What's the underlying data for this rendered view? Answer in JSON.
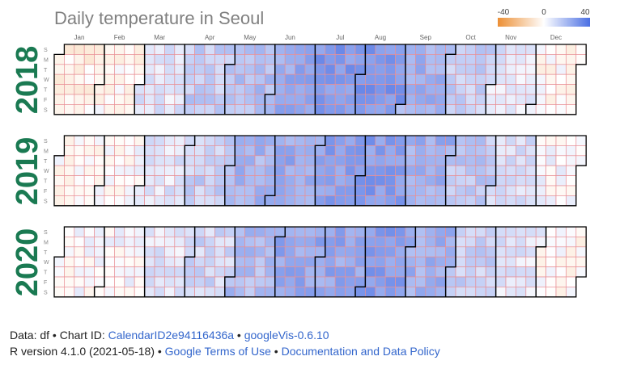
{
  "chart_data": {
    "type": "heatmap",
    "subtype": "calendar",
    "title": "Daily temperature in Seoul",
    "years": [
      "2018",
      "2019",
      "2020"
    ],
    "month_labels": [
      "Jan",
      "Feb",
      "Mar",
      "Apr",
      "May",
      "Jun",
      "Jul",
      "Aug",
      "Sep",
      "Oct",
      "Nov",
      "Dec"
    ],
    "day_labels": [
      "S",
      "M",
      "T",
      "W",
      "T",
      "F",
      "S"
    ],
    "legend": {
      "min_label": "-40",
      "mid_label": "0",
      "max_label": "40",
      "min": -40,
      "max": 40,
      "placement": "top-right"
    },
    "colors": {
      "min": "#ec8f35",
      "zero": "#ffffff",
      "max": "#4a6fe3",
      "cell_border": "#e98f95",
      "month_border": "#000000",
      "title": "#808080",
      "year": "#1a7a52"
    },
    "monthly_mean_temperature": {
      "2018": [
        -4,
        -2,
        7,
        14,
        18,
        23,
        28,
        29,
        21,
        13,
        7,
        -1
      ],
      "2019": [
        -1,
        1,
        7,
        13,
        20,
        23,
        26,
        27,
        22,
        15,
        9,
        2
      ],
      "2020": [
        1,
        2,
        7,
        11,
        18,
        24,
        24,
        27,
        21,
        13,
        7,
        -1
      ]
    }
  },
  "footer": {
    "line1": {
      "prefix": "Data: df • Chart ID: ",
      "chart_id": "CalendarID2e94116436a",
      "sep": " • ",
      "package": "googleVis-0.6.10"
    },
    "line2": {
      "prefix": "R version 4.1.0 (2021-05-18) • ",
      "terms": "Google Terms of Use",
      "sep": " • ",
      "policy": "Documentation and Data Policy"
    }
  }
}
